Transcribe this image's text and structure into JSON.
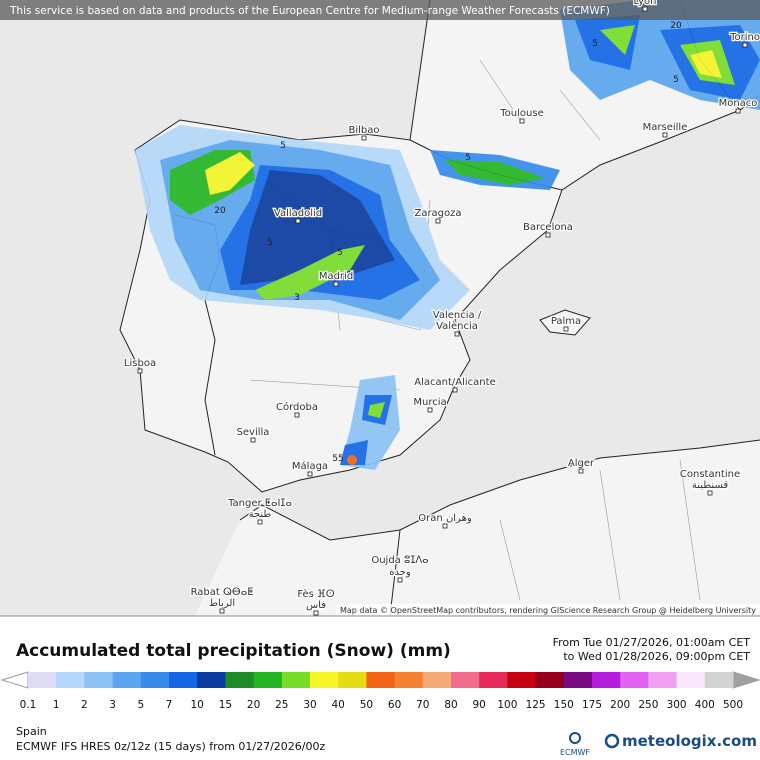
{
  "header": {
    "banner": "This service is based on data and products of the European Centre for Medium-range Weather Forecasts (ECMWF)"
  },
  "map": {
    "attribution": "Map data © OpenStreetMap contributors, rendering GIScience Research Group @ Heidelberg University",
    "cities": [
      "Lyon",
      "Torino",
      "Monaco",
      "Toulouse",
      "Marseille",
      "Bilbao",
      "Valladolid",
      "Zaragoza",
      "Barcelona",
      "Madrid",
      "Valencia /",
      "València",
      "Palma",
      "Lisboa",
      "Alacant/Alicante",
      "Murcia",
      "Córdoba",
      "Sevilla",
      "Málaga",
      "Alger",
      "Constantine",
      "قسنطينة",
      "Tanger ⵟⴰⵏⵊⴰ",
      "طنجة",
      "Oran وهران",
      "Oujda ⵓⵊⴷⴰ",
      "وجدة",
      "Rabat ⵕⴱⴰⵟ",
      "الرباط",
      "Fès ⴼⵙ",
      "فاس"
    ],
    "contour_labels": [
      "5",
      "20",
      "5",
      "5",
      "3",
      "5",
      "55",
      "5",
      "20",
      "5"
    ]
  },
  "legend": {
    "title": "Accumulated total precipitation (Snow) (mm)",
    "from": "From Tue 01/27/2026, 01:00am CET",
    "to": "to Wed 01/28/2026, 09:00pm CET",
    "levels": [
      0.1,
      1,
      2,
      3,
      5,
      7,
      10,
      15,
      20,
      25,
      30,
      40,
      50,
      60,
      70,
      80,
      90,
      100,
      125,
      150,
      175,
      200,
      250,
      300,
      400,
      500
    ],
    "colors": [
      "#dcdcf5",
      "#b4d7fa",
      "#8cc3f5",
      "#5aa5ee",
      "#378ceb",
      "#1468e6",
      "#0a3ca0",
      "#1e8c28",
      "#23b423",
      "#78dc28",
      "#f5f528",
      "#e6dc14",
      "#f06414",
      "#f58232",
      "#f5aa78",
      "#f06e8c",
      "#e6285a",
      "#c80014",
      "#96001e",
      "#780a82",
      "#b41edc",
      "#e164f0",
      "#f0a0f0",
      "#fae6fa",
      "#d2d2d2"
    ],
    "under_color": "#ffffff",
    "over_color": "#a0a0a0"
  },
  "footer": {
    "region": "Spain",
    "model": "ECMWF IFS HRES 0z/12z (15 days) from 01/27/2026/00z",
    "ecmwf": "ECMWF",
    "brand": "meteologix.com"
  }
}
